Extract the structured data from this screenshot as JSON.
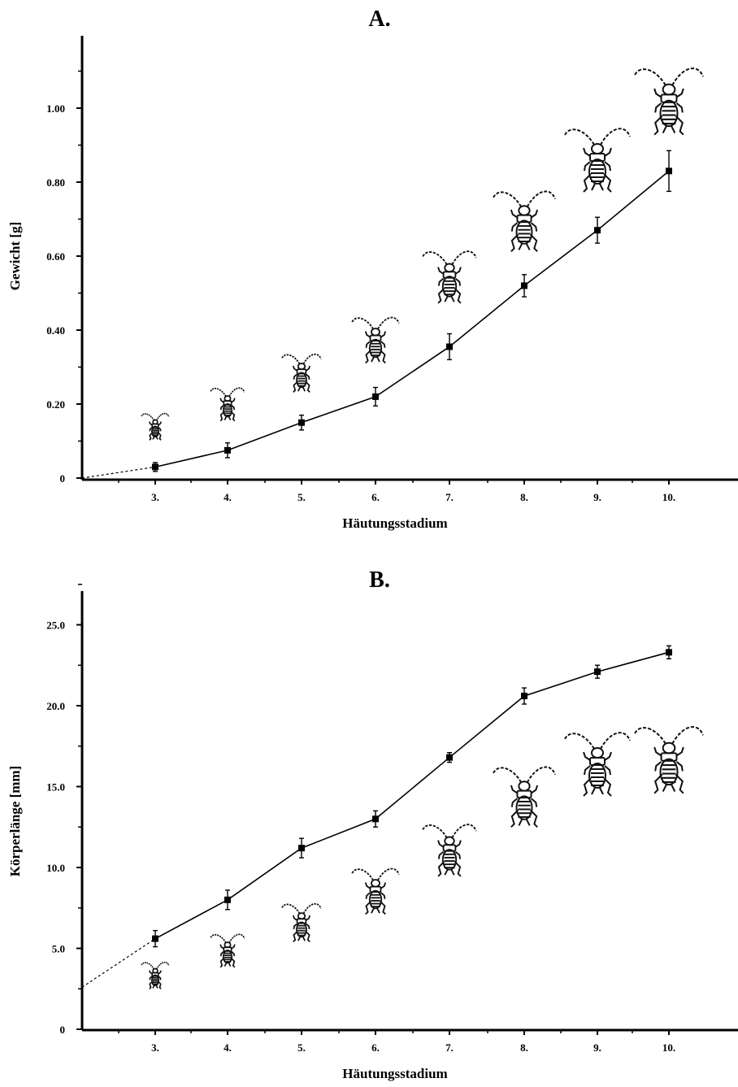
{
  "chart_data": [
    {
      "type": "line",
      "title": "A.",
      "xlabel": "Häutungsstadium",
      "ylabel": "Gewicht [g]",
      "categories": [
        "3.",
        "4.",
        "5.",
        "6.",
        "7.",
        "8.",
        "9.",
        "10."
      ],
      "yticks": [
        "0",
        "0.20",
        "0.40",
        "0.60",
        "0.80",
        "1.00"
      ],
      "ylim": [
        0,
        1.2
      ],
      "grid": false,
      "series": [
        {
          "values": [
            0.03,
            0.075,
            0.15,
            0.22,
            0.355,
            0.52,
            0.67,
            0.83
          ],
          "errors": [
            0.012,
            0.02,
            0.02,
            0.025,
            0.035,
            0.03,
            0.035,
            0.055
          ],
          "extrapolated_start": 0.0
        }
      ],
      "illustrations": "cricket nymph drawings for each stage, increasing in size"
    },
    {
      "type": "line",
      "title": "B.",
      "xlabel": "Häutungsstadium",
      "ylabel": "Körperlänge [mm]",
      "categories": [
        "3.",
        "4.",
        "5.",
        "6.",
        "7.",
        "8.",
        "9.",
        "10."
      ],
      "yticks": [
        "0",
        "5.0",
        "10.0",
        "15.0",
        "20.0",
        "25.0"
      ],
      "ylim": [
        0,
        29
      ],
      "grid": false,
      "series": [
        {
          "values": [
            5.6,
            8.0,
            11.2,
            13.0,
            16.8,
            20.6,
            22.1,
            23.3
          ],
          "errors": [
            0.5,
            0.6,
            0.6,
            0.5,
            0.3,
            0.5,
            0.4,
            0.4
          ],
          "extrapolated_start": 2.6
        }
      ],
      "illustrations": "cricket nymph drawings for each stage, increasing in size"
    }
  ]
}
